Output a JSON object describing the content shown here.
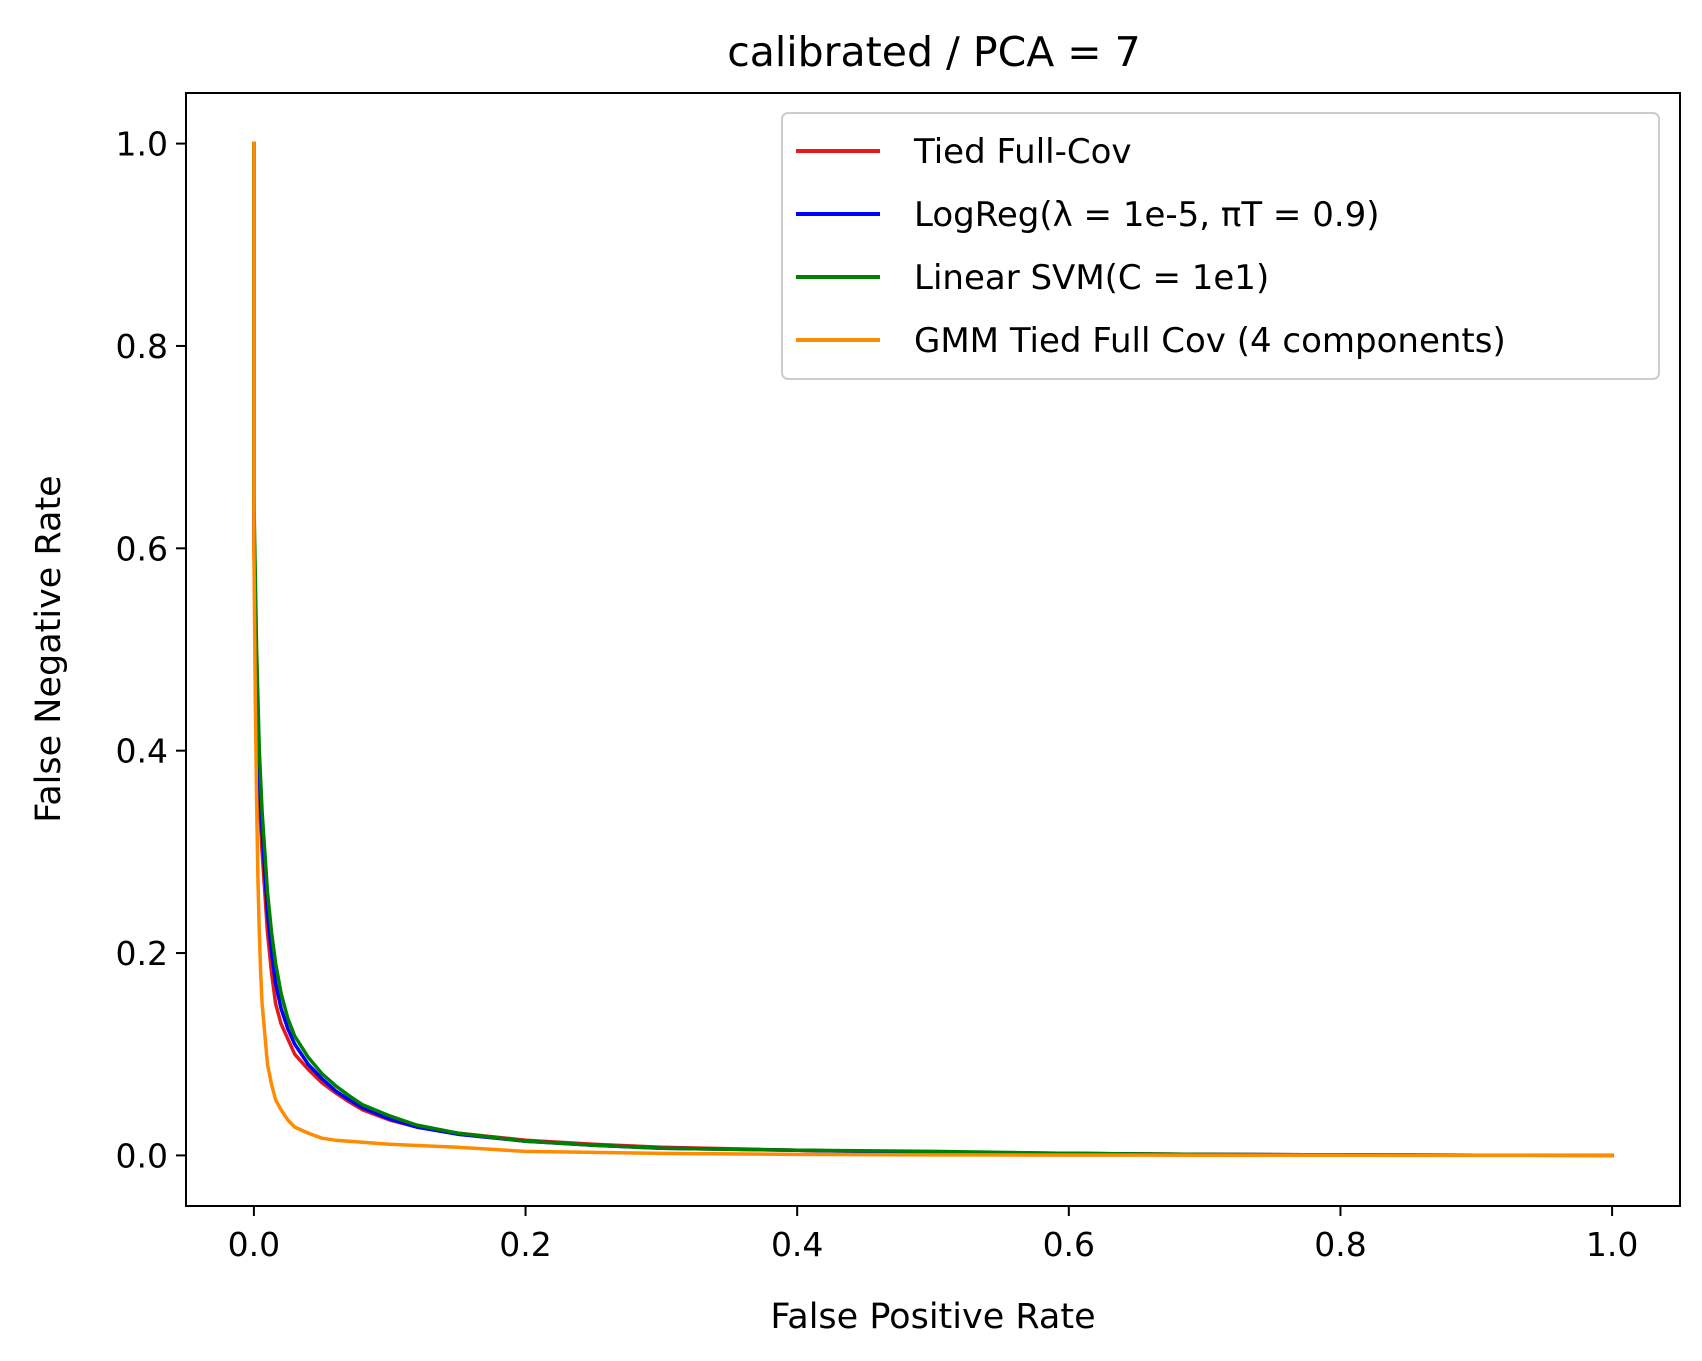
{
  "chart_data": {
    "type": "line",
    "title": "calibrated / PCA = 7",
    "xlabel": "False Positive Rate",
    "ylabel": "False Negative Rate",
    "xlim": [
      -0.05,
      1.05
    ],
    "ylim": [
      -0.05,
      1.05
    ],
    "xticks": [
      0.0,
      0.2,
      0.4,
      0.6,
      0.8,
      1.0
    ],
    "xtick_labels": [
      "0.0",
      "0.2",
      "0.4",
      "0.6",
      "0.8",
      "1.0"
    ],
    "yticks": [
      0.0,
      0.2,
      0.4,
      0.6,
      0.8,
      1.0
    ],
    "ytick_labels": [
      "0.0",
      "0.2",
      "0.4",
      "0.6",
      "0.8",
      "1.0"
    ],
    "grid": false,
    "legend_position": "top-right",
    "series": [
      {
        "name": "Tied Full-Cov",
        "color": "#e41a1c",
        "x": [
          0.0,
          0.0,
          0.002,
          0.004,
          0.006,
          0.008,
          0.01,
          0.013,
          0.016,
          0.02,
          0.025,
          0.03,
          0.04,
          0.05,
          0.06,
          0.07,
          0.08,
          0.1,
          0.12,
          0.15,
          0.2,
          0.25,
          0.3,
          0.4,
          0.5,
          0.6,
          0.7,
          0.8,
          0.9,
          1.0
        ],
        "y": [
          1.0,
          0.6,
          0.45,
          0.35,
          0.3,
          0.26,
          0.22,
          0.18,
          0.15,
          0.13,
          0.115,
          0.1,
          0.085,
          0.072,
          0.062,
          0.053,
          0.045,
          0.035,
          0.028,
          0.022,
          0.015,
          0.011,
          0.008,
          0.005,
          0.003,
          0.002,
          0.001,
          0.0005,
          0.0002,
          0.0
        ]
      },
      {
        "name": "LogReg(λ = 1e-5, πT = 0.9)",
        "color": "#0000ff",
        "x": [
          0.0,
          0.0,
          0.002,
          0.004,
          0.006,
          0.008,
          0.01,
          0.013,
          0.016,
          0.02,
          0.025,
          0.03,
          0.04,
          0.05,
          0.06,
          0.07,
          0.08,
          0.1,
          0.12,
          0.15,
          0.2,
          0.25,
          0.3,
          0.4,
          0.5,
          0.6,
          0.7,
          0.8,
          0.9,
          1.0
        ],
        "y": [
          1.0,
          0.62,
          0.47,
          0.37,
          0.32,
          0.28,
          0.24,
          0.2,
          0.17,
          0.145,
          0.125,
          0.11,
          0.09,
          0.076,
          0.064,
          0.055,
          0.047,
          0.036,
          0.028,
          0.021,
          0.014,
          0.01,
          0.007,
          0.005,
          0.003,
          0.002,
          0.001,
          0.0005,
          0.0002,
          0.0
        ]
      },
      {
        "name": "Linear SVM(C = 1e1)",
        "color": "#008000",
        "x": [
          0.0,
          0.0,
          0.002,
          0.004,
          0.006,
          0.008,
          0.01,
          0.013,
          0.016,
          0.02,
          0.025,
          0.03,
          0.04,
          0.05,
          0.06,
          0.07,
          0.08,
          0.1,
          0.12,
          0.15,
          0.2,
          0.25,
          0.3,
          0.4,
          0.5,
          0.6,
          0.7,
          0.8,
          0.9,
          1.0
        ],
        "y": [
          1.0,
          0.65,
          0.5,
          0.4,
          0.34,
          0.3,
          0.26,
          0.22,
          0.19,
          0.16,
          0.135,
          0.118,
          0.097,
          0.081,
          0.069,
          0.059,
          0.05,
          0.039,
          0.03,
          0.022,
          0.014,
          0.01,
          0.007,
          0.005,
          0.004,
          0.002,
          0.001,
          0.0005,
          0.0002,
          0.0
        ]
      },
      {
        "name": "GMM Tied Full Cov (4 components)",
        "color": "#ff8c00",
        "x": [
          0.0,
          0.0,
          0.001,
          0.002,
          0.003,
          0.004,
          0.005,
          0.006,
          0.008,
          0.01,
          0.013,
          0.016,
          0.02,
          0.025,
          0.03,
          0.04,
          0.05,
          0.06,
          0.08,
          0.1,
          0.15,
          0.2,
          0.3,
          0.4,
          0.5,
          0.6,
          0.7,
          0.8,
          0.9,
          1.0
        ],
        "y": [
          1.0,
          0.6,
          0.45,
          0.35,
          0.27,
          0.22,
          0.18,
          0.15,
          0.12,
          0.09,
          0.07,
          0.055,
          0.045,
          0.035,
          0.028,
          0.022,
          0.017,
          0.015,
          0.013,
          0.011,
          0.008,
          0.004,
          0.002,
          0.001,
          0.0005,
          0.0003,
          0.0002,
          0.0001,
          0.0,
          0.0
        ]
      }
    ]
  }
}
